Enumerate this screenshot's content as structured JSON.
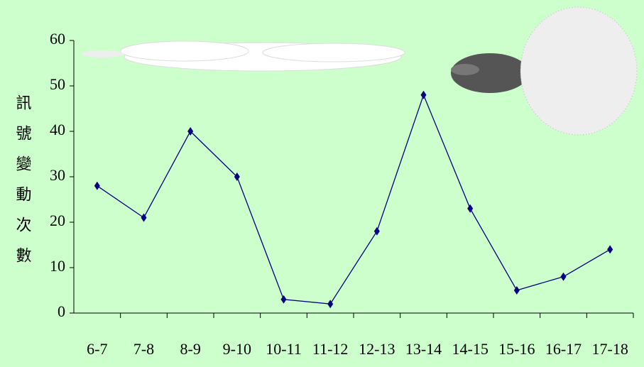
{
  "chart_data": {
    "type": "line",
    "y_label": "訊號變動次數",
    "categories": [
      "6-7",
      "7-8",
      "8-9",
      "9-10",
      "10-11",
      "11-12",
      "12-13",
      "13-14",
      "14-15",
      "15-16",
      "16-17",
      "17-18"
    ],
    "series": [
      {
        "color": "#000080",
        "values": [
          28,
          21,
          40,
          30,
          3,
          2,
          18,
          48,
          23,
          5,
          8,
          14
        ]
      }
    ],
    "ylim": [
      0,
      60
    ],
    "yticks": [
      0,
      10,
      20,
      30,
      40,
      50,
      60
    ]
  }
}
